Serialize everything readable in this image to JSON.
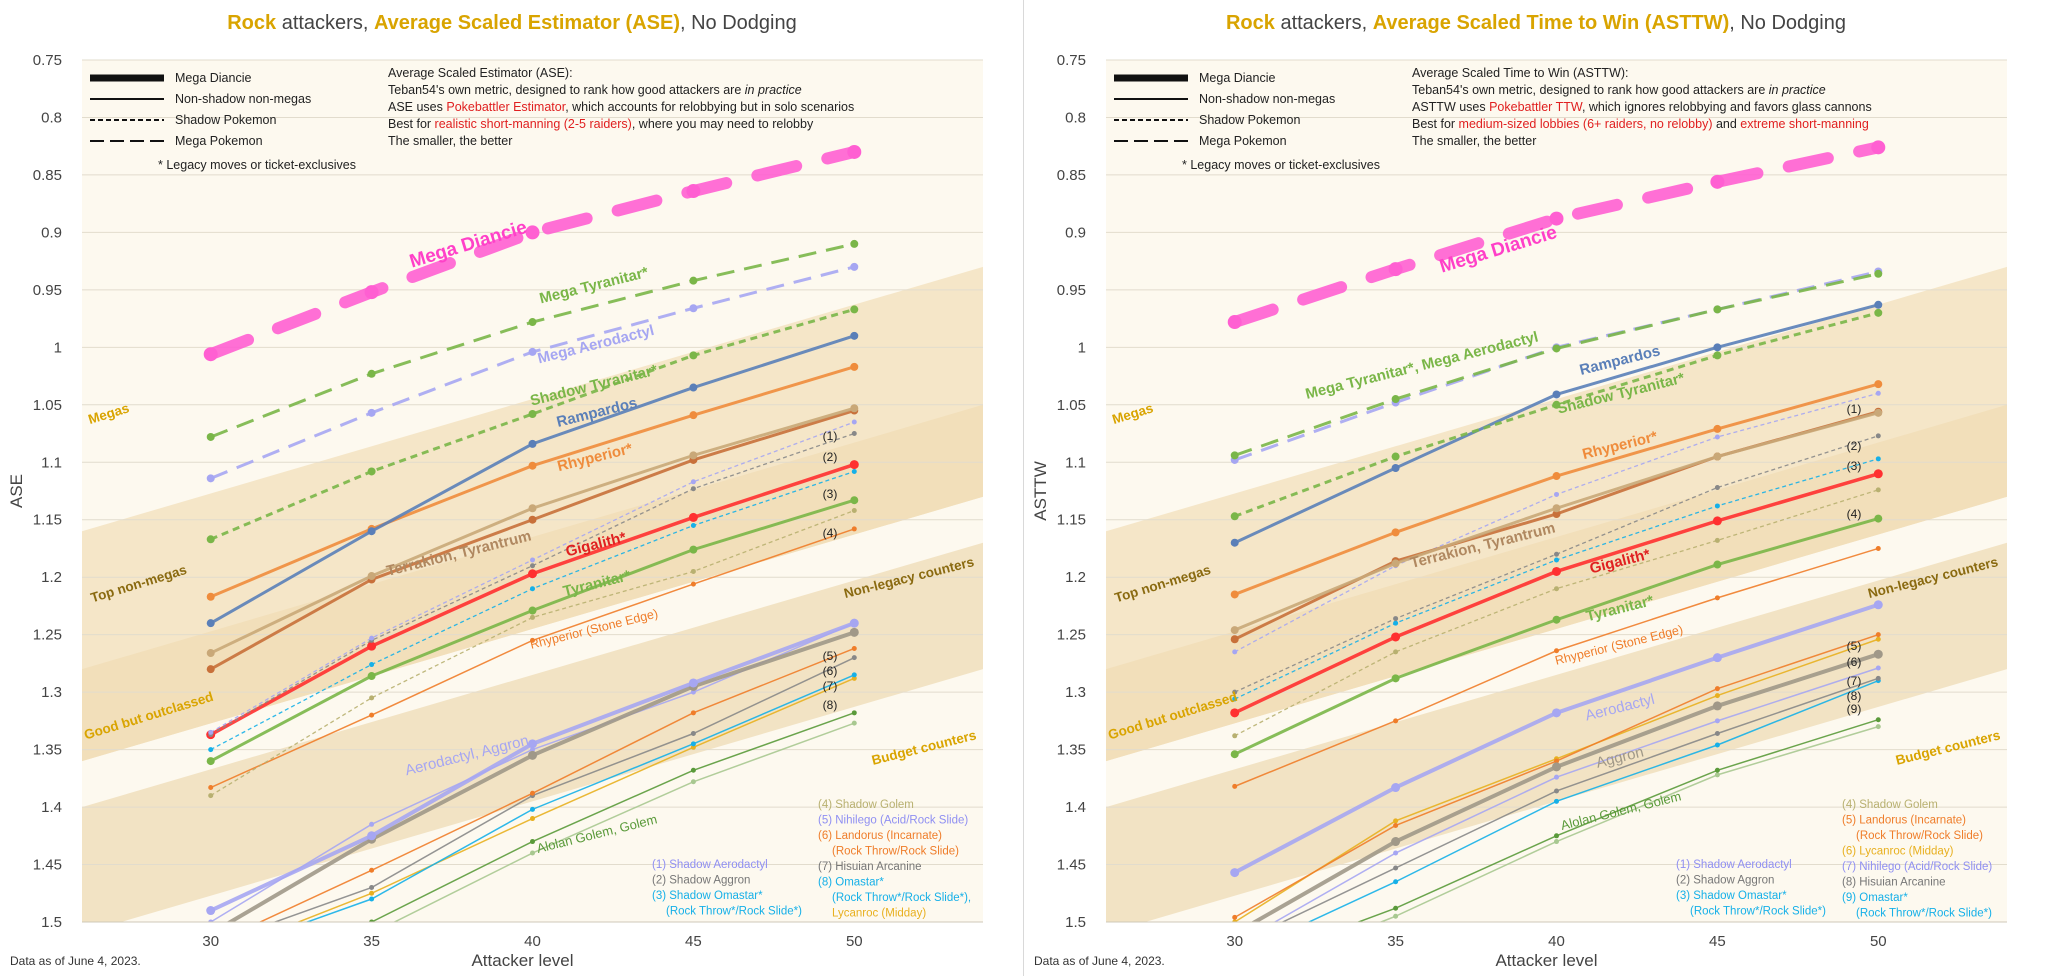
{
  "panels": [
    {
      "title_prefix": "Rock",
      "title_mid": " attackers, ",
      "title_metric": "Average Scaled Estimator (ASE)",
      "title_suffix": ", No Dodging",
      "date_note": "Data as of June 4, 2023.",
      "legend_lines": [
        "Mega Diancie",
        "Non-shadow non-megas",
        "Shadow Pokemon",
        "Mega Pokemon"
      ],
      "legend_star": "*  Legacy moves or ticket-exclusives",
      "desc": [
        {
          "text": "Average Scaled Estimator (ASE):"
        },
        {
          "text": "Teban54's own metric, designed to rank how good attackers are ",
          "italic": "in practice"
        },
        {
          "text": "ASE uses ",
          "red": "Pokebattler Estimator",
          "rest": ", which accounts for relobbying but in solo scenarios"
        },
        {
          "text": "Best for ",
          "red": "realistic short-manning (2-5 raiders)",
          "rest": ", where you may need to relobby"
        },
        {
          "text": "The smaller, the better"
        }
      ],
      "tier_labels": [
        "Megas",
        "Top non-megas",
        "Good but outclassed",
        "Non-legacy counters",
        "Budget counters"
      ],
      "footnotes": [
        "(1) Shadow Aerodactyl",
        "(2) Shadow Aggron",
        "(3) Shadow Omastar*",
        "(Rock Throw*/Rock Slide*)",
        "(4) Shadow Golem",
        "(5) Nihilego (Acid/Rock Slide)",
        "(6) Landorus (Incarnate)",
        "(Rock Throw/Rock Slide)",
        "(7) Hisuian Arcanine",
        "(8) Omastar*",
        "(Rock Throw*/Rock Slide*),",
        "Lycanroc (Midday)"
      ],
      "footnote_colors": [
        "#8f8ff2",
        "#777777",
        "#16b0e8",
        "#16b0e8",
        "#b8b070",
        "#8f8ff2",
        "#ef7d2a",
        "#ef7d2a",
        "#777777",
        "#16b0e8",
        "#16b0e8",
        "#e8b020"
      ],
      "series_labels": [
        "Mega Diancie",
        "Mega Tyranitar*",
        "Mega Aerodactyl",
        "Shadow Tyranitar*",
        "Rampardos",
        "Rhyperior*",
        "Terrakion, Tyrantrum",
        "Gigalith*",
        "Tyranitar*",
        "Rhyperior (Stone Edge)",
        "Aerodactyl, Aggron",
        "Alolan Golem, Golem"
      ],
      "number_labels": [
        "(1)",
        "(2)",
        "(3)",
        "(4)",
        "(5)",
        "(6)",
        "(7)",
        "(8)"
      ]
    },
    {
      "title_prefix": "Rock",
      "title_mid": " attackers, ",
      "title_metric": "Average Scaled Time to Win (ASTTW)",
      "title_suffix": ", No Dodging",
      "date_note": "Data as of June 4, 2023.",
      "legend_lines": [
        "Mega Diancie",
        "Non-shadow non-megas",
        "Shadow Pokemon",
        "Mega Pokemon"
      ],
      "legend_star": "*  Legacy moves or ticket-exclusives",
      "desc": [
        {
          "text": "Average Scaled Time to Win (ASTTW):"
        },
        {
          "text": "Teban54's own metric, designed to rank how good attackers are ",
          "italic": "in practice"
        },
        {
          "text": "ASTTW uses ",
          "red": "Pokebattler TTW",
          "rest": ", which ignores relobbying and favors glass cannons"
        },
        {
          "text": "Best for ",
          "red": "medium-sized lobbies (6+ raiders, no relobby)",
          "rest": " and ",
          "red2": "extreme short-manning"
        },
        {
          "text": "The smaller, the better"
        }
      ],
      "tier_labels": [
        "Megas",
        "Top non-megas",
        "Good but outclassed",
        "Non-legacy counters",
        "Budget counters"
      ],
      "footnotes": [
        "(1) Shadow Aerodactyl",
        "(2) Shadow Aggron",
        "(3) Shadow Omastar*",
        "(Rock Throw*/Rock Slide*)",
        "(4) Shadow Golem",
        "(5) Landorus (Incarnate)",
        "(Rock Throw/Rock Slide)",
        "(6) Lycanroc (Midday)",
        "(7) Nihilego (Acid/Rock Slide)",
        "(8) Hisuian Arcanine",
        "(9) Omastar*",
        "(Rock Throw*/Rock Slide*)"
      ],
      "footnote_colors": [
        "#8f8ff2",
        "#777777",
        "#16b0e8",
        "#16b0e8",
        "#b8b070",
        "#ef7d2a",
        "#ef7d2a",
        "#e8b020",
        "#8f8ff2",
        "#777777",
        "#16b0e8",
        "#16b0e8"
      ],
      "series_labels": [
        "Mega Diancie",
        "Mega Tyranitar*, Mega Aerodactyl",
        "Rampardos",
        "Shadow Tyranitar*",
        "Rhyperior*",
        "Terrakion, Tyrantrum",
        "Gigalith*",
        "Tyranitar*",
        "Rhyperior (Stone Edge)",
        "Aerodactyl",
        "Aggron",
        "Alolan Golem, Golem"
      ],
      "number_labels": [
        "(1)",
        "(2)",
        "(3)",
        "(4)",
        "(5)",
        "(6)",
        "(7)",
        "(8)",
        "(9)"
      ]
    }
  ],
  "chart_data": [
    {
      "type": "line",
      "title": "Rock attackers, Average Scaled Estimator (ASE), No Dodging",
      "xlabel": "Attacker level",
      "ylabel": "ASE",
      "x": [
        30,
        35,
        40,
        45,
        50
      ],
      "xlim": [
        26,
        54
      ],
      "ylim": [
        0.75,
        1.5
      ],
      "y_inverted": true,
      "yticks": [
        "0.75",
        "0.8",
        "0.85",
        "0.9",
        "0.95",
        "1",
        "1.05",
        "1.1",
        "1.15",
        "1.2",
        "1.25",
        "1.3",
        "1.35",
        "1.4",
        "1.45",
        "1.5"
      ],
      "xticks": [
        "30",
        "35",
        "40",
        "45",
        "50"
      ],
      "series": [
        {
          "name": "Mega Diancie",
          "style": "mega-diancie",
          "color": "#ff5fd2",
          "values": [
            1.006,
            0.952,
            0.9,
            0.864,
            0.83
          ]
        },
        {
          "name": "Mega Tyranitar*",
          "style": "mega",
          "color": "#7ab648",
          "values": [
            1.078,
            1.023,
            0.978,
            0.942,
            0.91
          ]
        },
        {
          "name": "Mega Aerodactyl",
          "style": "mega",
          "color": "#a6a6f2",
          "values": [
            1.114,
            1.057,
            1.004,
            0.966,
            0.93
          ]
        },
        {
          "name": "Shadow Tyranitar*",
          "style": "shadow",
          "color": "#7ab648",
          "values": [
            1.167,
            1.108,
            1.058,
            1.007,
            0.967
          ]
        },
        {
          "name": "Rampardos",
          "style": "solid",
          "color": "#5a7fb8",
          "values": [
            1.24,
            1.16,
            1.084,
            1.035,
            0.99
          ]
        },
        {
          "name": "Rhyperior*",
          "style": "solid",
          "color": "#ef8c3c",
          "values": [
            1.217,
            1.158,
            1.103,
            1.059,
            1.017
          ]
        },
        {
          "name": "Terrakion",
          "style": "solid",
          "color": "#c9a878",
          "values": [
            1.266,
            1.199,
            1.14,
            1.094,
            1.053
          ]
        },
        {
          "name": "Tyrantrum",
          "style": "solid",
          "color": "#c8703a",
          "values": [
            1.28,
            1.202,
            1.15,
            1.098,
            1.055
          ]
        },
        {
          "name": "Shadow Aerodactyl",
          "style": "thin-dash",
          "color": "#a6a6f2",
          "values": [
            1.335,
            1.253,
            1.185,
            1.117,
            1.065
          ]
        },
        {
          "name": "Shadow Aggron",
          "style": "thin-dash",
          "color": "#888888",
          "values": [
            1.337,
            1.255,
            1.19,
            1.123,
            1.075
          ]
        },
        {
          "name": "Gigalith*",
          "style": "bold",
          "color": "#ff3030",
          "values": [
            1.337,
            1.26,
            1.197,
            1.148,
            1.102
          ]
        },
        {
          "name": "Shadow Omastar*",
          "style": "thin-dash",
          "color": "#16b0e8",
          "values": [
            1.35,
            1.276,
            1.21,
            1.155,
            1.108
          ]
        },
        {
          "name": "Tyranitar*",
          "style": "solid",
          "color": "#7ab648",
          "values": [
            1.36,
            1.286,
            1.229,
            1.176,
            1.133
          ]
        },
        {
          "name": "Shadow Golem",
          "style": "thin-dash",
          "color": "#b8b070",
          "values": [
            1.39,
            1.305,
            1.235,
            1.195,
            1.142
          ]
        },
        {
          "name": "Rhyperior (Stone Edge)",
          "style": "thin",
          "color": "#ef7d2a",
          "values": [
            1.383,
            1.32,
            1.255,
            1.206,
            1.158
          ]
        },
        {
          "name": "Aerodactyl",
          "style": "thick",
          "color": "#a6a6f2",
          "values": [
            1.49,
            1.425,
            1.345,
            1.292,
            1.24
          ]
        },
        {
          "name": "Aggron",
          "style": "thick",
          "color": "#a09888",
          "values": [
            1.51,
            1.428,
            1.355,
            1.295,
            1.248
          ]
        },
        {
          "name": "Nihilego",
          "style": "thin",
          "color": "#a6a6f2",
          "values": [
            1.5,
            1.415,
            1.35,
            1.3,
            1.24
          ]
        },
        {
          "name": "Landorus (Incarnate)",
          "style": "thin",
          "color": "#ef7d2a",
          "values": [
            1.52,
            1.455,
            1.388,
            1.318,
            1.262
          ]
        },
        {
          "name": "Hisuian Arcanine",
          "style": "thin",
          "color": "#888888",
          "values": [
            1.52,
            1.47,
            1.39,
            1.336,
            1.27
          ]
        },
        {
          "name": "Omastar*",
          "style": "thin",
          "color": "#16b0e8",
          "values": [
            1.53,
            1.48,
            1.402,
            1.345,
            1.285
          ]
        },
        {
          "name": "Lycanroc (Midday)",
          "style": "thin",
          "color": "#e8b020",
          "values": [
            1.53,
            1.475,
            1.41,
            1.348,
            1.288
          ]
        },
        {
          "name": "Alolan Golem",
          "style": "thin",
          "color": "#5a9a3a",
          "values": [
            1.55,
            1.5,
            1.43,
            1.368,
            1.318
          ]
        },
        {
          "name": "Golem",
          "style": "thin",
          "color": "#a8c890",
          "values": [
            1.56,
            1.51,
            1.44,
            1.378,
            1.327
          ]
        }
      ]
    },
    {
      "type": "line",
      "title": "Rock attackers, Average Scaled Time to Win (ASTTW), No Dodging",
      "xlabel": "Attacker level",
      "ylabel": "ASTTW",
      "x": [
        30,
        35,
        40,
        45,
        50
      ],
      "xlim": [
        26,
        54
      ],
      "ylim": [
        0.75,
        1.5
      ],
      "y_inverted": true,
      "yticks": [
        "0.75",
        "0.8",
        "0.85",
        "0.9",
        "0.95",
        "1",
        "1.05",
        "1.1",
        "1.15",
        "1.2",
        "1.25",
        "1.3",
        "1.35",
        "1.4",
        "1.45",
        "1.5"
      ],
      "xticks": [
        "30",
        "35",
        "40",
        "45",
        "50"
      ],
      "series": [
        {
          "name": "Mega Diancie",
          "style": "mega-diancie",
          "color": "#ff5fd2",
          "values": [
            0.978,
            0.932,
            0.888,
            0.856,
            0.826
          ]
        },
        {
          "name": "Mega Tyranitar*",
          "style": "mega",
          "color": "#7ab648",
          "values": [
            1.094,
            1.045,
            1.001,
            0.967,
            0.936
          ]
        },
        {
          "name": "Mega Aerodactyl",
          "style": "mega",
          "color": "#a6a6f2",
          "values": [
            1.098,
            1.048,
            1.0,
            0.967,
            0.934
          ]
        },
        {
          "name": "Shadow Tyranitar*",
          "style": "shadow",
          "color": "#7ab648",
          "values": [
            1.147,
            1.095,
            1.05,
            1.007,
            0.97
          ]
        },
        {
          "name": "Rampardos",
          "style": "solid",
          "color": "#5a7fb8",
          "values": [
            1.17,
            1.105,
            1.041,
            1.0,
            0.963
          ]
        },
        {
          "name": "Rhyperior*",
          "style": "solid",
          "color": "#ef8c3c",
          "values": [
            1.215,
            1.161,
            1.112,
            1.071,
            1.032
          ]
        },
        {
          "name": "Terrakion",
          "style": "solid",
          "color": "#c9a878",
          "values": [
            1.246,
            1.188,
            1.14,
            1.095,
            1.057
          ]
        },
        {
          "name": "Tyrantrum",
          "style": "solid",
          "color": "#c8703a",
          "values": [
            1.254,
            1.186,
            1.145,
            1.095,
            1.056
          ]
        },
        {
          "name": "Shadow Aerodactyl",
          "style": "thin-dash",
          "color": "#a6a6f2",
          "values": [
            1.265,
            1.19,
            1.128,
            1.078,
            1.04
          ]
        },
        {
          "name": "Shadow Aggron",
          "style": "thin-dash",
          "color": "#888888",
          "values": [
            1.3,
            1.236,
            1.18,
            1.122,
            1.077
          ]
        },
        {
          "name": "Gigalith*",
          "style": "bold",
          "color": "#ff3030",
          "values": [
            1.318,
            1.252,
            1.195,
            1.151,
            1.11
          ]
        },
        {
          "name": "Shadow Omastar*",
          "style": "thin-dash",
          "color": "#16b0e8",
          "values": [
            1.306,
            1.24,
            1.185,
            1.138,
            1.097
          ]
        },
        {
          "name": "Tyranitar*",
          "style": "solid",
          "color": "#7ab648",
          "values": [
            1.354,
            1.288,
            1.237,
            1.189,
            1.149
          ]
        },
        {
          "name": "Shadow Golem",
          "style": "thin-dash",
          "color": "#b8b070",
          "values": [
            1.338,
            1.265,
            1.21,
            1.168,
            1.124
          ]
        },
        {
          "name": "Rhyperior (Stone Edge)",
          "style": "thin",
          "color": "#ef7d2a",
          "values": [
            1.382,
            1.325,
            1.264,
            1.218,
            1.175
          ]
        },
        {
          "name": "Aerodactyl",
          "style": "thick",
          "color": "#a6a6f2",
          "values": [
            1.457,
            1.383,
            1.318,
            1.27,
            1.224
          ]
        },
        {
          "name": "Aggron",
          "style": "thick",
          "color": "#a09888",
          "values": [
            1.51,
            1.43,
            1.365,
            1.312,
            1.267
          ]
        },
        {
          "name": "Landorus (Incarnate)",
          "style": "thin",
          "color": "#ef7d2a",
          "values": [
            1.496,
            1.416,
            1.36,
            1.297,
            1.25
          ]
        },
        {
          "name": "Lycanroc (Midday)",
          "style": "thin",
          "color": "#e8b020",
          "values": [
            1.5,
            1.412,
            1.358,
            1.303,
            1.254
          ]
        },
        {
          "name": "Nihilego",
          "style": "thin",
          "color": "#a6a6f2",
          "values": [
            1.52,
            1.44,
            1.374,
            1.325,
            1.279
          ]
        },
        {
          "name": "Hisuian Arcanine",
          "style": "thin",
          "color": "#888888",
          "values": [
            1.52,
            1.453,
            1.386,
            1.336,
            1.288
          ]
        },
        {
          "name": "Omastar*",
          "style": "thin",
          "color": "#16b0e8",
          "values": [
            1.53,
            1.465,
            1.395,
            1.346,
            1.29
          ]
        },
        {
          "name": "Alolan Golem",
          "style": "thin",
          "color": "#5a9a3a",
          "values": [
            1.54,
            1.488,
            1.425,
            1.368,
            1.324
          ]
        },
        {
          "name": "Golem",
          "style": "thin",
          "color": "#a8c890",
          "values": [
            1.55,
            1.495,
            1.43,
            1.372,
            1.33
          ]
        }
      ]
    }
  ]
}
